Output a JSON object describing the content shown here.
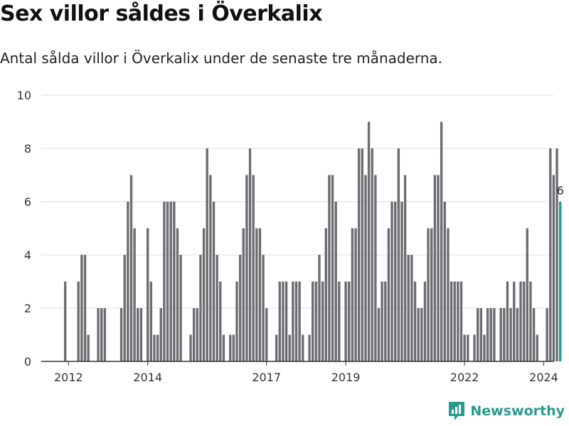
{
  "header": {
    "title": "Sex villor såldes i Överkalix",
    "subtitle": "Antal sålda villor i Överkalix under de senaste tre månaderna."
  },
  "brand": {
    "name": "Newsworthy",
    "color": "#2a9a8e"
  },
  "colors": {
    "bar": "#6d6c72",
    "highlight": "#1a9e94",
    "grid": "#dddddd",
    "axis": "#333333"
  },
  "chart_data": {
    "type": "bar",
    "title": "Sex villor såldes i Överkalix",
    "xlabel": "",
    "ylabel": "",
    "ylim": [
      0,
      10
    ],
    "yticks": [
      0,
      2,
      4,
      6,
      8,
      10
    ],
    "xticks": [
      {
        "label": "2012",
        "month": "2012-01"
      },
      {
        "label": "2014",
        "month": "2014-01"
      },
      {
        "label": "2017",
        "month": "2017-01"
      },
      {
        "label": "2019",
        "month": "2019-01"
      },
      {
        "label": "2022",
        "month": "2022-01"
      },
      {
        "label": "2024",
        "month": "2024-01"
      }
    ],
    "start_month": "2011-12",
    "values": [
      3,
      0,
      0,
      0,
      3,
      4,
      4,
      1,
      0,
      0,
      2,
      2,
      2,
      0,
      0,
      0,
      0,
      2,
      4,
      6,
      7,
      5,
      2,
      2,
      0,
      5,
      3,
      1,
      1,
      2,
      6,
      6,
      6,
      6,
      5,
      4,
      0,
      0,
      1,
      2,
      2,
      4,
      5,
      8,
      7,
      6,
      4,
      3,
      1,
      0,
      1,
      1,
      3,
      4,
      5,
      7,
      8,
      7,
      5,
      5,
      4,
      2,
      0,
      0,
      1,
      3,
      3,
      3,
      1,
      3,
      3,
      3,
      1,
      0,
      1,
      3,
      3,
      4,
      3,
      5,
      7,
      7,
      6,
      3,
      0,
      3,
      3,
      5,
      5,
      8,
      8,
      7,
      9,
      8,
      7,
      2,
      3,
      3,
      5,
      6,
      6,
      8,
      6,
      7,
      4,
      4,
      3,
      2,
      2,
      3,
      5,
      5,
      7,
      7,
      9,
      6,
      5,
      3,
      3,
      3,
      3,
      1,
      1,
      0,
      1,
      2,
      2,
      1,
      2,
      2,
      2,
      0,
      2,
      2,
      3,
      2,
      3,
      2,
      3,
      3,
      5,
      3,
      2,
      1,
      0,
      0,
      2,
      8,
      7,
      8,
      6
    ],
    "highlight_index": 150,
    "highlight_label": "6"
  }
}
